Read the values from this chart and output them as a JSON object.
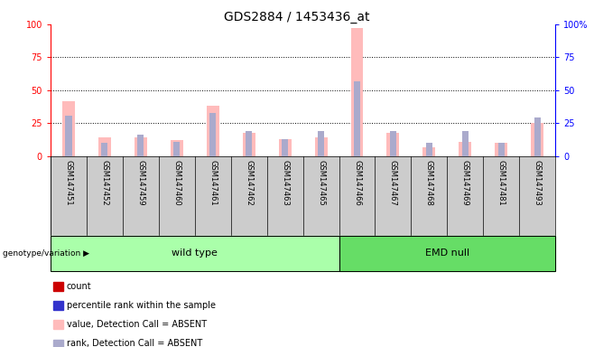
{
  "title": "GDS2884 / 1453436_at",
  "samples": [
    "GSM147451",
    "GSM147452",
    "GSM147459",
    "GSM147460",
    "GSM147461",
    "GSM147462",
    "GSM147463",
    "GSM147465",
    "GSM147466",
    "GSM147467",
    "GSM147468",
    "GSM147469",
    "GSM147481",
    "GSM147493"
  ],
  "absent_value": [
    42,
    14,
    14,
    12,
    38,
    18,
    13,
    14,
    97,
    18,
    7,
    11,
    10,
    25
  ],
  "absent_rank": [
    31,
    10,
    16,
    11,
    33,
    19,
    13,
    19,
    57,
    19,
    10,
    19,
    10,
    29
  ],
  "group_split": 8,
  "group_labels": [
    "wild type",
    "EMD null"
  ],
  "group_color_wt": "#aaffaa",
  "group_color_emd": "#66dd66",
  "ylim": [
    0,
    100
  ],
  "grid_lines": [
    25,
    50,
    75
  ],
  "absent_bar_color": "#ffbbbb",
  "absent_rank_color": "#aaaacc",
  "count_color": "#cc0000",
  "rank_color": "#3333cc",
  "sample_bg_color": "#cccccc",
  "legend_items": [
    {
      "label": "count",
      "color": "#cc0000"
    },
    {
      "label": "percentile rank within the sample",
      "color": "#3333cc"
    },
    {
      "label": "value, Detection Call = ABSENT",
      "color": "#ffbbbb"
    },
    {
      "label": "rank, Detection Call = ABSENT",
      "color": "#aaaacc"
    }
  ]
}
